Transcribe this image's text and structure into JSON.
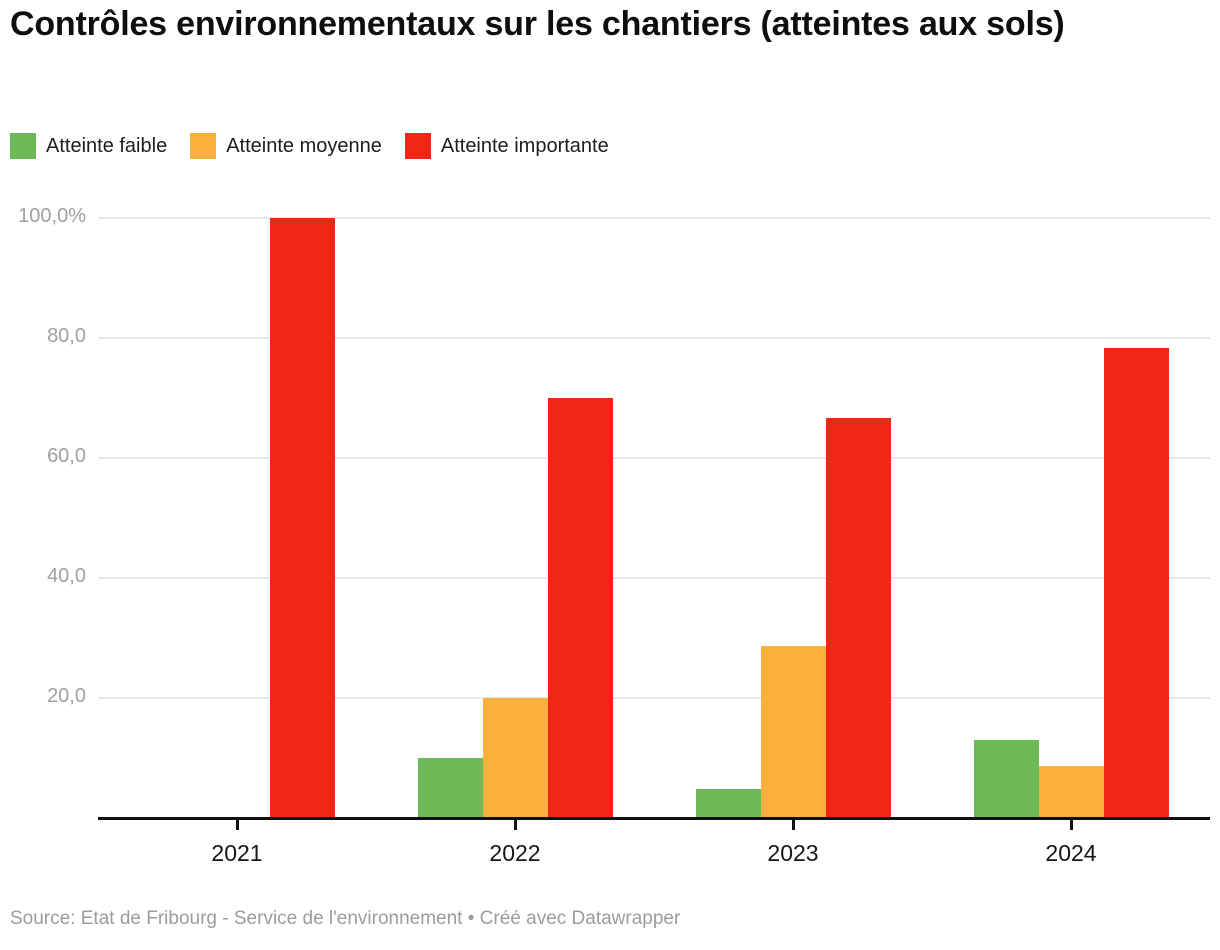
{
  "title": "Contrôles environnementaux sur les chantiers (atteintes aux sols)",
  "footer": "Source: Etat de Fribourg - Service de l'environnement • Créé avec Datawrapper",
  "colors": {
    "faible": "#6db957",
    "moyenne": "#fab03c",
    "importante": "#f22617",
    "axis": "#101010",
    "grid": "#e9e9e9",
    "tick_label": "#a0a0a0"
  },
  "chart_data": {
    "type": "bar",
    "title": "Contrôles environnementaux sur les chantiers (atteintes aux sols)",
    "xlabel": "",
    "ylabel": "",
    "categories": [
      "2021",
      "2022",
      "2023",
      "2024"
    ],
    "series": [
      {
        "name": "Atteinte faible",
        "color": "#6db957",
        "values": [
          0,
          10.0,
          4.8,
          13.0
        ]
      },
      {
        "name": "Atteinte moyenne",
        "color": "#fab03c",
        "values": [
          0,
          20.0,
          28.6,
          8.7
        ]
      },
      {
        "name": "Atteinte importante",
        "color": "#f22617",
        "values": [
          100.0,
          70.0,
          66.7,
          78.3
        ]
      }
    ],
    "ylim": [
      0,
      100
    ],
    "y_ticks": [
      {
        "value": 20,
        "label": "20,0"
      },
      {
        "value": 40,
        "label": "40,0"
      },
      {
        "value": 60,
        "label": "60,0"
      },
      {
        "value": 80,
        "label": "80,0"
      },
      {
        "value": 100,
        "label": "100,0%"
      }
    ],
    "grid": "horizontal",
    "legend_position": "top",
    "value_unit": "percent"
  }
}
